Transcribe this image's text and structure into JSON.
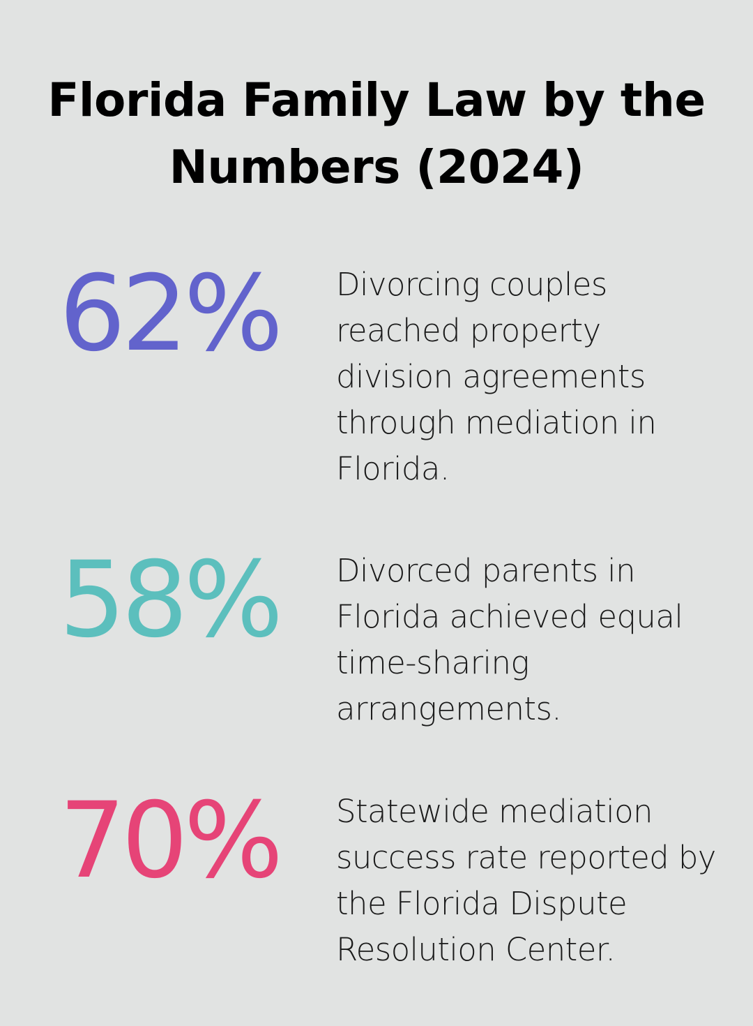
{
  "title": "Florida Family Law by the Numbers (2024)",
  "stats": [
    {
      "value": "62%",
      "description": "Divorcing couples reached property division agreements through mediation in Florida.",
      "color": "#6263cc"
    },
    {
      "value": "58%",
      "description": "Divorced parents in Florida achieved equal time-sharing arrangements.",
      "color": "#5cbfbd"
    },
    {
      "value": "70%",
      "description": "Statewide mediation success rate reported by the Florida Dispute Resolution Center.",
      "color": "#e64477"
    }
  ]
}
